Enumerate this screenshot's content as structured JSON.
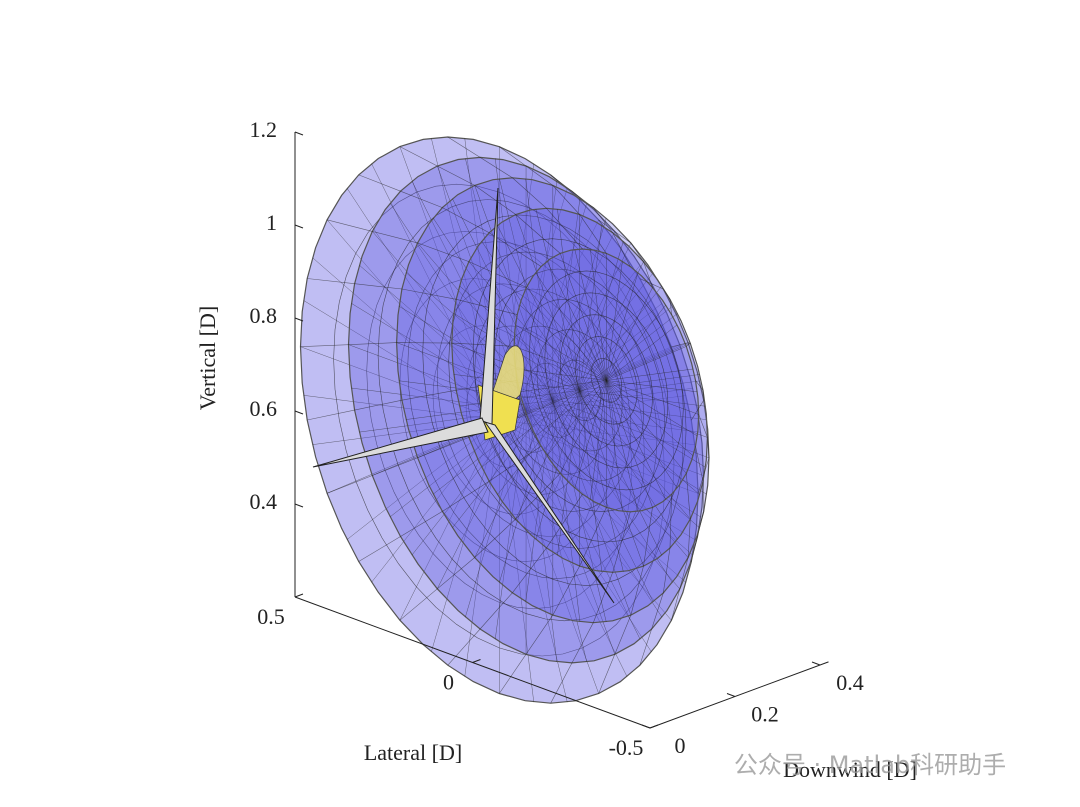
{
  "chart_data": {
    "type": "surface3d",
    "xlabel": "Downwind [D]",
    "ylabel": "Lateral [D]",
    "zlabel": "Vertical [D]",
    "xlim": [
      0,
      0.42
    ],
    "xticks": [
      0,
      0.2,
      0.4
    ],
    "ylim": [
      -0.5,
      0.5
    ],
    "yticks": [
      -0.5,
      0,
      0.5
    ],
    "zlim": [
      0.2,
      1.2
    ],
    "zticks": [
      0.4,
      0.6,
      0.8,
      1,
      1.2
    ],
    "color": "#5a55e0"
  },
  "watermark": "公众号 · Matlab科研助手"
}
